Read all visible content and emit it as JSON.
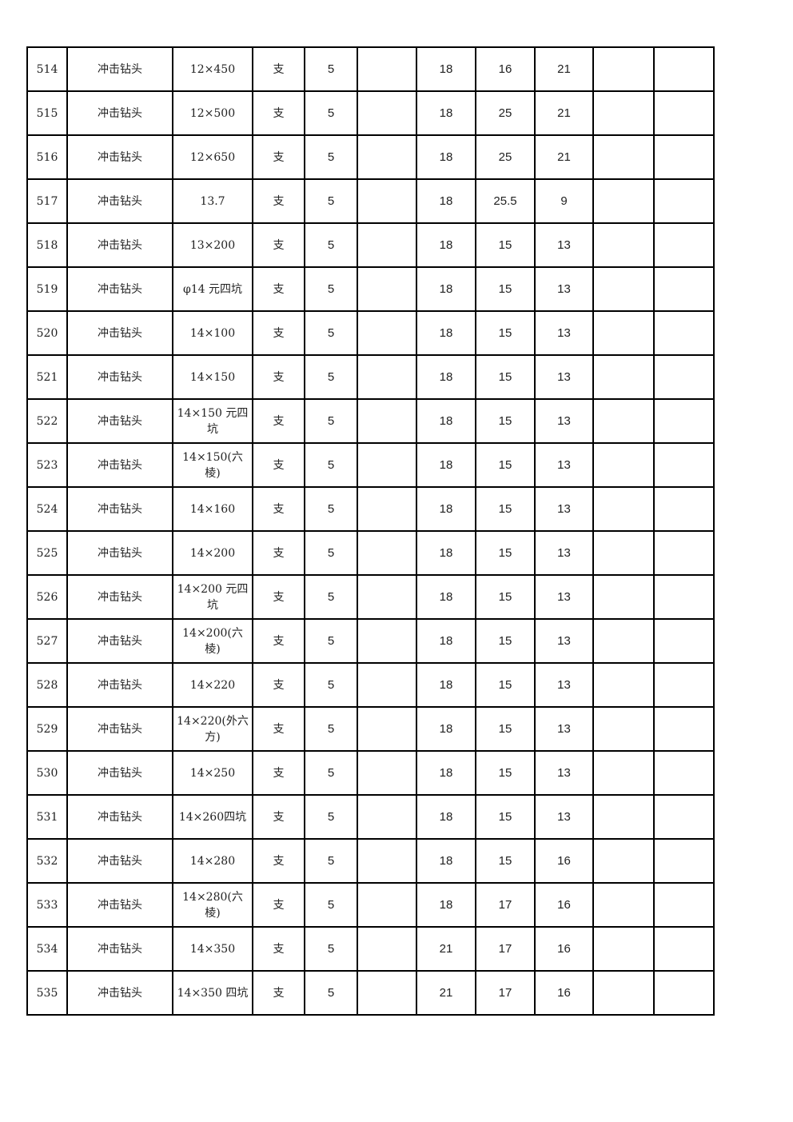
{
  "rows": [
    {
      "no": "514",
      "name": "冲击钻头",
      "spec": "12×450",
      "unit": "支",
      "qty": "5",
      "c6": "",
      "a": "18",
      "b": "16",
      "c": "21",
      "c10": "",
      "c11": ""
    },
    {
      "no": "515",
      "name": "冲击钻头",
      "spec": "12×500",
      "unit": "支",
      "qty": "5",
      "c6": "",
      "a": "18",
      "b": "25",
      "c": "21",
      "c10": "",
      "c11": ""
    },
    {
      "no": "516",
      "name": "冲击钻头",
      "spec": "12×650",
      "unit": "支",
      "qty": "5",
      "c6": "",
      "a": "18",
      "b": "25",
      "c": "21",
      "c10": "",
      "c11": ""
    },
    {
      "no": "517",
      "name": "冲击钻头",
      "spec": "13.7",
      "unit": "支",
      "qty": "5",
      "c6": "",
      "a": "18",
      "b": "25.5",
      "c": "9",
      "c10": "",
      "c11": ""
    },
    {
      "no": "518",
      "name": "冲击钻头",
      "spec": "13×200",
      "unit": "支",
      "qty": "5",
      "c6": "",
      "a": "18",
      "b": "15",
      "c": "13",
      "c10": "",
      "c11": ""
    },
    {
      "no": "519",
      "name": "冲击钻头",
      "spec": "φ14 元四坑",
      "unit": "支",
      "qty": "5",
      "c6": "",
      "a": "18",
      "b": "15",
      "c": "13",
      "c10": "",
      "c11": ""
    },
    {
      "no": "520",
      "name": "冲击钻头",
      "spec": "14×100",
      "unit": "支",
      "qty": "5",
      "c6": "",
      "a": "18",
      "b": "15",
      "c": "13",
      "c10": "",
      "c11": ""
    },
    {
      "no": "521",
      "name": "冲击钻头",
      "spec": "14×150",
      "unit": "支",
      "qty": "5",
      "c6": "",
      "a": "18",
      "b": "15",
      "c": "13",
      "c10": "",
      "c11": ""
    },
    {
      "no": "522",
      "name": "冲击钻头",
      "spec": "14×150 元四坑",
      "unit": "支",
      "qty": "5",
      "c6": "",
      "a": "18",
      "b": "15",
      "c": "13",
      "c10": "",
      "c11": ""
    },
    {
      "no": "523",
      "name": "冲击钻头",
      "spec": "14×150(六棱)",
      "unit": "支",
      "qty": "5",
      "c6": "",
      "a": "18",
      "b": "15",
      "c": "13",
      "c10": "",
      "c11": ""
    },
    {
      "no": "524",
      "name": "冲击钻头",
      "spec": "14×160",
      "unit": "支",
      "qty": "5",
      "c6": "",
      "a": "18",
      "b": "15",
      "c": "13",
      "c10": "",
      "c11": ""
    },
    {
      "no": "525",
      "name": "冲击钻头",
      "spec": "14×200",
      "unit": "支",
      "qty": "5",
      "c6": "",
      "a": "18",
      "b": "15",
      "c": "13",
      "c10": "",
      "c11": ""
    },
    {
      "no": "526",
      "name": "冲击钻头",
      "spec": "14×200 元四坑",
      "unit": "支",
      "qty": "5",
      "c6": "",
      "a": "18",
      "b": "15",
      "c": "13",
      "c10": "",
      "c11": ""
    },
    {
      "no": "527",
      "name": "冲击钻头",
      "spec": "14×200(六棱)",
      "unit": "支",
      "qty": "5",
      "c6": "",
      "a": "18",
      "b": "15",
      "c": "13",
      "c10": "",
      "c11": ""
    },
    {
      "no": "528",
      "name": "冲击钻头",
      "spec": "14×220",
      "unit": "支",
      "qty": "5",
      "c6": "",
      "a": "18",
      "b": "15",
      "c": "13",
      "c10": "",
      "c11": ""
    },
    {
      "no": "529",
      "name": "冲击钻头",
      "spec": "14×220(外六方)",
      "unit": "支",
      "qty": "5",
      "c6": "",
      "a": "18",
      "b": "15",
      "c": "13",
      "c10": "",
      "c11": ""
    },
    {
      "no": "530",
      "name": "冲击钻头",
      "spec": "14×250",
      "unit": "支",
      "qty": "5",
      "c6": "",
      "a": "18",
      "b": "15",
      "c": "13",
      "c10": "",
      "c11": ""
    },
    {
      "no": "531",
      "name": "冲击钻头",
      "spec": "14×260四坑",
      "unit": "支",
      "qty": "5",
      "c6": "",
      "a": "18",
      "b": "15",
      "c": "13",
      "c10": "",
      "c11": ""
    },
    {
      "no": "532",
      "name": "冲击钻头",
      "spec": "14×280",
      "unit": "支",
      "qty": "5",
      "c6": "",
      "a": "18",
      "b": "15",
      "c": "16",
      "c10": "",
      "c11": ""
    },
    {
      "no": "533",
      "name": "冲击钻头",
      "spec": "14×280(六棱)",
      "unit": "支",
      "qty": "5",
      "c6": "",
      "a": "18",
      "b": "17",
      "c": "16",
      "c10": "",
      "c11": ""
    },
    {
      "no": "534",
      "name": "冲击钻头",
      "spec": "14×350",
      "unit": "支",
      "qty": "5",
      "c6": "",
      "a": "21",
      "b": "17",
      "c": "16",
      "c10": "",
      "c11": ""
    },
    {
      "no": "535",
      "name": "冲击钻头",
      "spec": "14×350 四坑",
      "unit": "支",
      "qty": "5",
      "c6": "",
      "a": "21",
      "b": "17",
      "c": "16",
      "c10": "",
      "c11": ""
    }
  ]
}
